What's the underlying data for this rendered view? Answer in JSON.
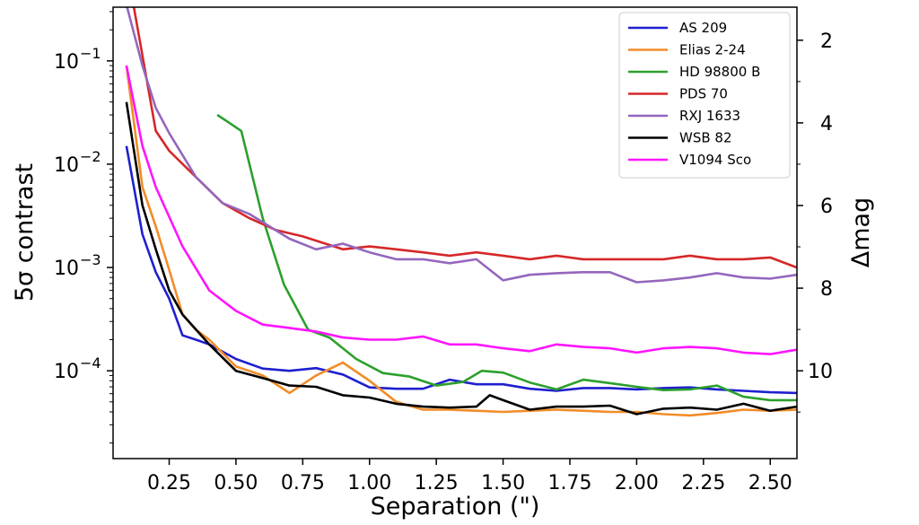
{
  "chart_data": {
    "type": "line",
    "xlabel": "Separation (\")",
    "ylabel": "5σ contrast",
    "y2label": "Δmag",
    "xlim": [
      0.04,
      2.6
    ],
    "ylim_log10": [
      -4.85,
      -0.48
    ],
    "y_scale": "log",
    "y2_scale": "linear (Δmag = -2.5·log10(contrast))",
    "x_ticks": [
      0.25,
      0.5,
      0.75,
      1.0,
      1.25,
      1.5,
      1.75,
      2.0,
      2.25,
      2.5
    ],
    "x_tick_labels": [
      "0.25",
      "0.50",
      "0.75",
      "1.00",
      "1.25",
      "1.50",
      "1.75",
      "2.00",
      "2.25",
      "2.50"
    ],
    "y_ticks": [
      0.0001,
      0.001,
      0.01,
      0.1
    ],
    "y_tick_bases": [
      "10",
      "10",
      "10",
      "10"
    ],
    "y_tick_exponents": [
      "−4",
      "−3",
      "−2",
      "−1"
    ],
    "y2_ticks": [
      2,
      4,
      6,
      8,
      10
    ],
    "y2_tick_labels": [
      "2",
      "4",
      "6",
      "8",
      "10"
    ],
    "grid": false,
    "legend_position": "top-right",
    "series": [
      {
        "name": "AS 209",
        "color": "#1f1fcf",
        "x": [
          0.09,
          0.15,
          0.2,
          0.25,
          0.3,
          0.35,
          0.4,
          0.5,
          0.6,
          0.7,
          0.8,
          0.9,
          1.0,
          1.1,
          1.2,
          1.3,
          1.4,
          1.5,
          1.6,
          1.7,
          1.8,
          1.9,
          2.0,
          2.1,
          2.2,
          2.3,
          2.4,
          2.5,
          2.6
        ],
        "y": [
          0.015,
          0.0021,
          0.0009,
          0.0005,
          0.00022,
          0.0002,
          0.00018,
          0.00013,
          0.000105,
          0.0001,
          0.000106,
          9.2e-05,
          6.9e-05,
          6.7e-05,
          6.7e-05,
          8.2e-05,
          7.4e-05,
          7.4e-05,
          6.7e-05,
          6.4e-05,
          6.8e-05,
          6.8e-05,
          6.6e-05,
          6.8e-05,
          6.9e-05,
          6.6e-05,
          6.4e-05,
          6.2e-05,
          6.1e-05
        ]
      },
      {
        "name": "Elias 2-24",
        "color": "#f28c28",
        "x": [
          0.09,
          0.15,
          0.2,
          0.25,
          0.3,
          0.35,
          0.4,
          0.5,
          0.6,
          0.7,
          0.8,
          0.9,
          1.0,
          1.1,
          1.2,
          1.3,
          1.4,
          1.5,
          1.6,
          1.7,
          1.8,
          1.9,
          2.0,
          2.1,
          2.2,
          2.3,
          2.4,
          2.5,
          2.6
        ],
        "y": [
          0.09,
          0.006,
          0.0025,
          0.00095,
          0.00035,
          0.00025,
          0.0002,
          0.00011,
          9e-05,
          6.1e-05,
          9e-05,
          0.00012,
          8e-05,
          5e-05,
          4.2e-05,
          4.2e-05,
          4.1e-05,
          4e-05,
          4.1e-05,
          4.2e-05,
          4.1e-05,
          4e-05,
          4e-05,
          3.8e-05,
          3.7e-05,
          3.9e-05,
          4.2e-05,
          4.1e-05,
          4.2e-05
        ]
      },
      {
        "name": "HD 98800 B",
        "color": "#2ca02c",
        "x": [
          0.43,
          0.52,
          0.6,
          0.68,
          0.77,
          0.85,
          0.95,
          1.05,
          1.15,
          1.25,
          1.35,
          1.42,
          1.5,
          1.6,
          1.7,
          1.8,
          1.9,
          2.0,
          2.1,
          2.2,
          2.3,
          2.4,
          2.5,
          2.6
        ],
        "y": [
          0.03,
          0.021,
          0.003,
          0.00068,
          0.00025,
          0.00021,
          0.00013,
          9.5e-05,
          8.8e-05,
          7.2e-05,
          7.8e-05,
          0.0001,
          9.6e-05,
          7.7e-05,
          6.6e-05,
          8.2e-05,
          7.6e-05,
          7e-05,
          6.5e-05,
          6.6e-05,
          7.2e-05,
          5.6e-05,
          5.2e-05,
          5.2e-05
        ]
      },
      {
        "name": "PDS 70",
        "color": "#d62728",
        "x": [
          0.1,
          0.2,
          0.25,
          0.35,
          0.45,
          0.55,
          0.65,
          0.75,
          0.9,
          1.0,
          1.1,
          1.2,
          1.3,
          1.4,
          1.5,
          1.6,
          1.7,
          1.8,
          1.9,
          2.0,
          2.1,
          2.2,
          2.3,
          2.4,
          2.5,
          2.6
        ],
        "y": [
          0.6,
          0.021,
          0.0135,
          0.0075,
          0.0042,
          0.003,
          0.0023,
          0.002,
          0.0015,
          0.0016,
          0.0015,
          0.0014,
          0.0013,
          0.0014,
          0.0013,
          0.0012,
          0.0013,
          0.0012,
          0.0012,
          0.0012,
          0.0012,
          0.0013,
          0.0012,
          0.0012,
          0.00125,
          0.001
        ]
      },
      {
        "name": "RXJ 1633",
        "color": "#9467bd",
        "x": [
          0.09,
          0.15,
          0.2,
          0.25,
          0.35,
          0.45,
          0.55,
          0.7,
          0.8,
          0.9,
          1.0,
          1.1,
          1.2,
          1.3,
          1.4,
          1.5,
          1.6,
          1.7,
          1.8,
          1.9,
          2.0,
          2.1,
          2.2,
          2.3,
          2.4,
          2.5,
          2.6
        ],
        "y": [
          0.35,
          0.09,
          0.035,
          0.02,
          0.0075,
          0.0042,
          0.0033,
          0.0019,
          0.0015,
          0.0017,
          0.0014,
          0.0012,
          0.0012,
          0.0011,
          0.0012,
          0.00075,
          0.00085,
          0.00088,
          0.0009,
          0.0009,
          0.00072,
          0.00075,
          0.0008,
          0.00088,
          0.0008,
          0.00078,
          0.00085
        ]
      },
      {
        "name": "WSB 82",
        "color": "#000000",
        "x": [
          0.09,
          0.15,
          0.2,
          0.25,
          0.3,
          0.4,
          0.5,
          0.6,
          0.7,
          0.8,
          0.9,
          1.0,
          1.1,
          1.2,
          1.3,
          1.4,
          1.45,
          1.5,
          1.6,
          1.7,
          1.8,
          1.9,
          2.0,
          2.1,
          2.2,
          2.3,
          2.4,
          2.5,
          2.6
        ],
        "y": [
          0.04,
          0.004,
          0.0015,
          0.0006,
          0.00035,
          0.00018,
          0.0001,
          8.5e-05,
          7.2e-05,
          7e-05,
          5.8e-05,
          5.5e-05,
          4.8e-05,
          4.5e-05,
          4.4e-05,
          4.5e-05,
          5.8e-05,
          5.2e-05,
          4.2e-05,
          4.5e-05,
          4.5e-05,
          4.6e-05,
          3.8e-05,
          4.3e-05,
          4.4e-05,
          4.2e-05,
          4.8e-05,
          4.1e-05,
          4.5e-05
        ]
      },
      {
        "name": "V1094 Sco",
        "color": "#ff14ff",
        "x": [
          0.09,
          0.15,
          0.2,
          0.3,
          0.4,
          0.5,
          0.6,
          0.7,
          0.8,
          0.9,
          1.0,
          1.1,
          1.2,
          1.3,
          1.4,
          1.5,
          1.6,
          1.7,
          1.8,
          1.9,
          2.0,
          2.1,
          2.2,
          2.3,
          2.4,
          2.5,
          2.6
        ],
        "y": [
          0.09,
          0.015,
          0.006,
          0.0016,
          0.0006,
          0.00038,
          0.00028,
          0.00026,
          0.00024,
          0.00021,
          0.0002,
          0.0002,
          0.000215,
          0.00018,
          0.00018,
          0.000165,
          0.000155,
          0.00018,
          0.00017,
          0.000165,
          0.00015,
          0.000165,
          0.00017,
          0.000165,
          0.00015,
          0.000145,
          0.00016
        ]
      }
    ]
  }
}
